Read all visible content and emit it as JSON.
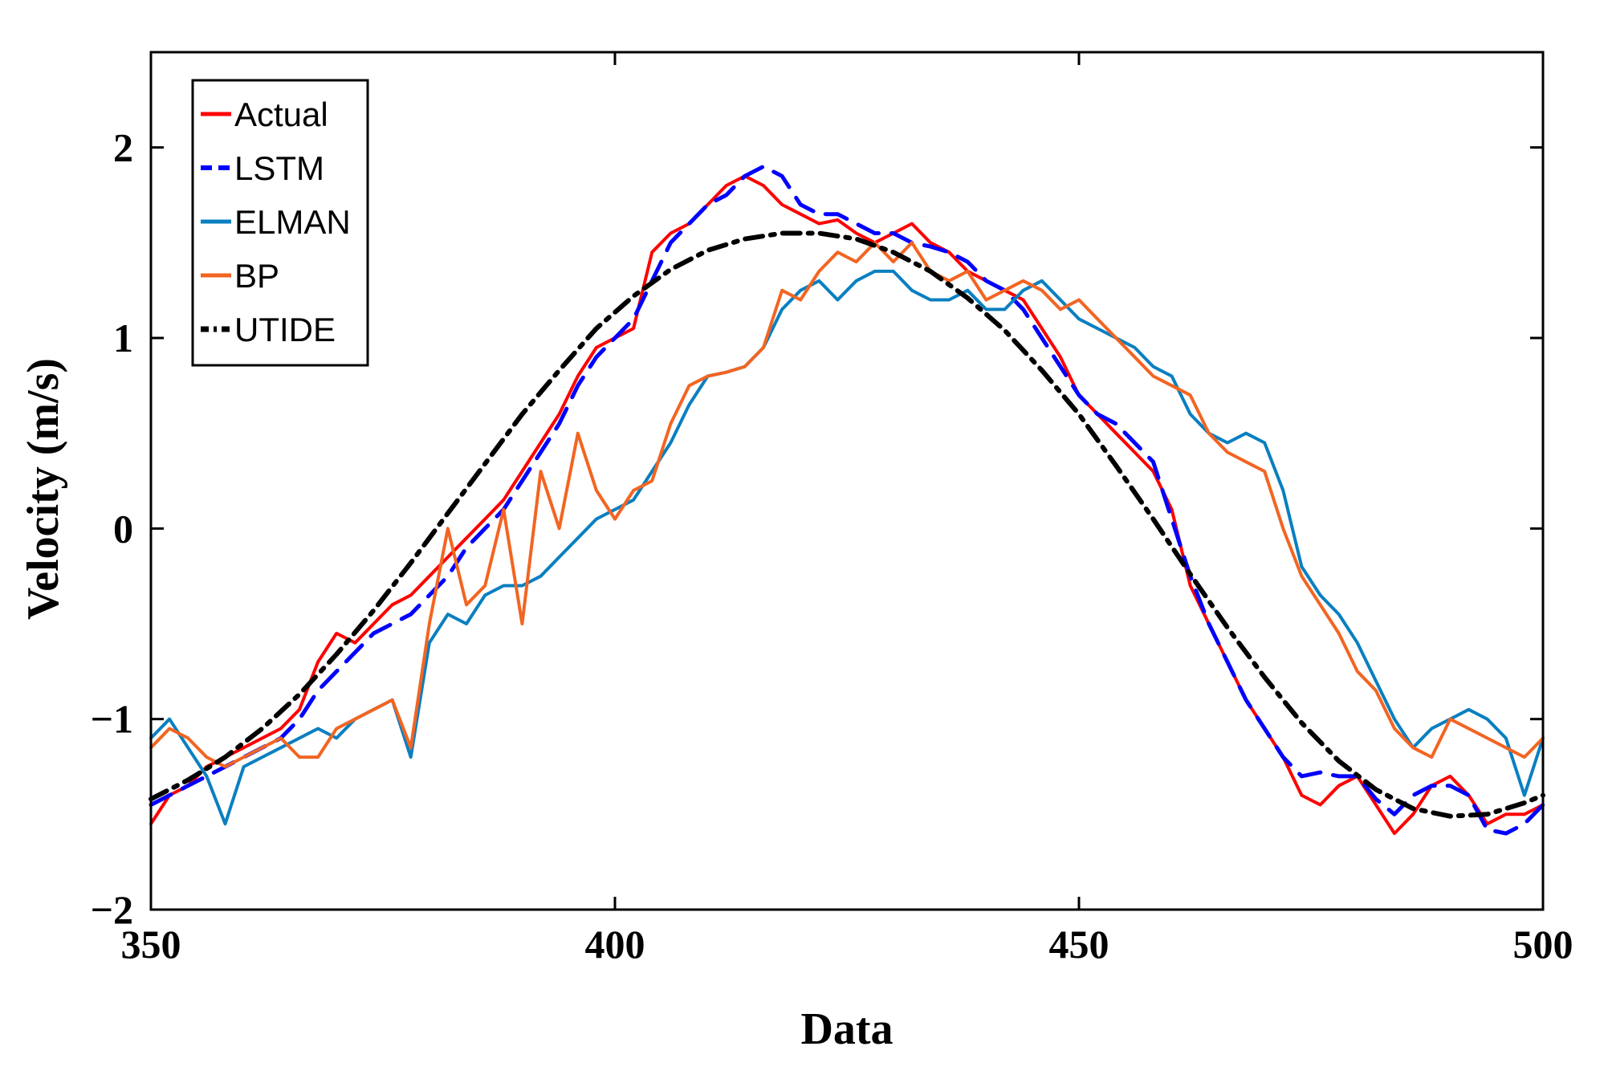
{
  "chart_data": {
    "type": "line",
    "title": "",
    "xlabel": "Data",
    "ylabel": "Velocity (m/s)",
    "xlim": [
      350,
      500
    ],
    "ylim": [
      -2,
      2.5
    ],
    "xticks": [
      350,
      400,
      450,
      500
    ],
    "yticks": [
      -2,
      -1,
      0,
      1,
      2
    ],
    "xtick_labels": [
      "350",
      "400",
      "450",
      "500"
    ],
    "ytick_labels": [
      "−2",
      "−1",
      "0",
      "1",
      "2"
    ],
    "legend_position": "top-left",
    "grid": false,
    "series": [
      {
        "name": "Actual",
        "color": "#ff0000",
        "style": "solid",
        "x": [
          350,
          352,
          354,
          356,
          358,
          360,
          362,
          364,
          366,
          368,
          370,
          372,
          374,
          376,
          378,
          380,
          382,
          384,
          386,
          388,
          390,
          392,
          394,
          396,
          398,
          400,
          402,
          404,
          406,
          408,
          410,
          412,
          414,
          416,
          418,
          420,
          422,
          424,
          426,
          428,
          430,
          432,
          434,
          436,
          438,
          440,
          442,
          444,
          446,
          448,
          450,
          452,
          454,
          456,
          458,
          460,
          462,
          464,
          466,
          468,
          470,
          472,
          474,
          476,
          478,
          480,
          482,
          484,
          486,
          488,
          490,
          492,
          494,
          496,
          498,
          500
        ],
        "y": [
          -1.55,
          -1.4,
          -1.35,
          -1.25,
          -1.2,
          -1.15,
          -1.1,
          -1.05,
          -0.95,
          -0.7,
          -0.55,
          -0.6,
          -0.5,
          -0.4,
          -0.35,
          -0.25,
          -0.15,
          -0.05,
          0.05,
          0.15,
          0.3,
          0.45,
          0.6,
          0.8,
          0.95,
          1.0,
          1.05,
          1.45,
          1.55,
          1.6,
          1.7,
          1.8,
          1.85,
          1.8,
          1.7,
          1.65,
          1.6,
          1.62,
          1.55,
          1.5,
          1.55,
          1.6,
          1.5,
          1.45,
          1.35,
          1.3,
          1.25,
          1.2,
          1.05,
          0.9,
          0.7,
          0.6,
          0.5,
          0.4,
          0.3,
          0.1,
          -0.3,
          -0.5,
          -0.7,
          -0.9,
          -1.05,
          -1.2,
          -1.4,
          -1.45,
          -1.35,
          -1.3,
          -1.45,
          -1.6,
          -1.5,
          -1.35,
          -1.3,
          -1.4,
          -1.55,
          -1.5,
          -1.5,
          -1.45
        ]
      },
      {
        "name": "LSTM",
        "color": "#0000ff",
        "style": "dashed",
        "x": [
          350,
          352,
          354,
          356,
          358,
          360,
          362,
          364,
          366,
          368,
          370,
          372,
          374,
          376,
          378,
          380,
          382,
          384,
          386,
          388,
          390,
          392,
          394,
          396,
          398,
          400,
          402,
          404,
          406,
          408,
          410,
          412,
          414,
          416,
          418,
          420,
          422,
          424,
          426,
          428,
          430,
          432,
          434,
          436,
          438,
          440,
          442,
          444,
          446,
          448,
          450,
          452,
          454,
          456,
          458,
          460,
          462,
          464,
          466,
          468,
          470,
          472,
          474,
          476,
          478,
          480,
          482,
          484,
          486,
          488,
          490,
          492,
          494,
          496,
          498,
          500
        ],
        "y": [
          -1.45,
          -1.4,
          -1.35,
          -1.3,
          -1.25,
          -1.2,
          -1.15,
          -1.1,
          -1.0,
          -0.85,
          -0.75,
          -0.65,
          -0.55,
          -0.5,
          -0.45,
          -0.35,
          -0.25,
          -0.1,
          0.0,
          0.1,
          0.25,
          0.4,
          0.55,
          0.75,
          0.9,
          1.0,
          1.1,
          1.3,
          1.5,
          1.6,
          1.7,
          1.75,
          1.85,
          1.9,
          1.85,
          1.7,
          1.65,
          1.65,
          1.6,
          1.55,
          1.55,
          1.5,
          1.48,
          1.45,
          1.4,
          1.3,
          1.25,
          1.15,
          1.0,
          0.85,
          0.7,
          0.6,
          0.55,
          0.45,
          0.35,
          0.05,
          -0.25,
          -0.5,
          -0.7,
          -0.9,
          -1.05,
          -1.2,
          -1.3,
          -1.28,
          -1.3,
          -1.3,
          -1.42,
          -1.5,
          -1.4,
          -1.35,
          -1.35,
          -1.4,
          -1.58,
          -1.6,
          -1.55,
          -1.45
        ]
      },
      {
        "name": "ELMAN",
        "color": "#0a7fc0",
        "style": "solid",
        "x": [
          350,
          352,
          354,
          356,
          358,
          360,
          362,
          364,
          366,
          368,
          370,
          372,
          374,
          376,
          378,
          380,
          382,
          384,
          386,
          388,
          390,
          392,
          394,
          396,
          398,
          400,
          402,
          404,
          406,
          408,
          410,
          412,
          414,
          416,
          418,
          420,
          422,
          424,
          426,
          428,
          430,
          432,
          434,
          436,
          438,
          440,
          442,
          444,
          446,
          448,
          450,
          452,
          454,
          456,
          458,
          460,
          462,
          464,
          466,
          468,
          470,
          472,
          474,
          476,
          478,
          480,
          482,
          484,
          486,
          488,
          490,
          492,
          494,
          496,
          498,
          500
        ],
        "y": [
          -1.1,
          -1.0,
          -1.15,
          -1.3,
          -1.55,
          -1.25,
          -1.2,
          -1.15,
          -1.1,
          -1.05,
          -1.1,
          -1.0,
          -0.95,
          -0.9,
          -1.2,
          -0.6,
          -0.45,
          -0.5,
          -0.35,
          -0.3,
          -0.3,
          -0.25,
          -0.15,
          -0.05,
          0.05,
          0.1,
          0.15,
          0.3,
          0.45,
          0.65,
          0.8,
          0.82,
          0.85,
          0.95,
          1.15,
          1.25,
          1.3,
          1.2,
          1.3,
          1.35,
          1.35,
          1.25,
          1.2,
          1.2,
          1.25,
          1.15,
          1.15,
          1.25,
          1.3,
          1.2,
          1.1,
          1.05,
          1.0,
          0.95,
          0.85,
          0.8,
          0.6,
          0.5,
          0.45,
          0.5,
          0.45,
          0.2,
          -0.2,
          -0.35,
          -0.45,
          -0.6,
          -0.8,
          -1.0,
          -1.15,
          -1.05,
          -1.0,
          -0.95,
          -1.0,
          -1.1,
          -1.4,
          -1.1
        ]
      },
      {
        "name": "BP",
        "color": "#f26522",
        "style": "solid",
        "x": [
          350,
          352,
          354,
          356,
          358,
          360,
          362,
          364,
          366,
          368,
          370,
          372,
          374,
          376,
          378,
          380,
          382,
          384,
          386,
          388,
          390,
          392,
          394,
          396,
          398,
          400,
          402,
          404,
          406,
          408,
          410,
          412,
          414,
          416,
          418,
          420,
          422,
          424,
          426,
          428,
          430,
          432,
          434,
          436,
          438,
          440,
          442,
          444,
          446,
          448,
          450,
          452,
          454,
          456,
          458,
          460,
          462,
          464,
          466,
          468,
          470,
          472,
          474,
          476,
          478,
          480,
          482,
          484,
          486,
          488,
          490,
          492,
          494,
          496,
          498,
          500
        ],
        "y": [
          -1.15,
          -1.05,
          -1.1,
          -1.2,
          -1.25,
          -1.2,
          -1.15,
          -1.1,
          -1.2,
          -1.2,
          -1.05,
          -1.0,
          -0.95,
          -0.9,
          -1.15,
          -0.5,
          0.0,
          -0.4,
          -0.3,
          0.1,
          -0.5,
          0.3,
          0.0,
          0.5,
          0.2,
          0.05,
          0.2,
          0.25,
          0.55,
          0.75,
          0.8,
          0.82,
          0.85,
          0.95,
          1.25,
          1.2,
          1.35,
          1.45,
          1.4,
          1.5,
          1.4,
          1.5,
          1.35,
          1.3,
          1.35,
          1.2,
          1.25,
          1.3,
          1.25,
          1.15,
          1.2,
          1.1,
          1.0,
          0.9,
          0.8,
          0.75,
          0.7,
          0.5,
          0.4,
          0.35,
          0.3,
          0.0,
          -0.25,
          -0.4,
          -0.55,
          -0.75,
          -0.85,
          -1.05,
          -1.15,
          -1.2,
          -1.0,
          -1.05,
          -1.1,
          -1.15,
          -1.2,
          -1.1
        ]
      },
      {
        "name": "UTIDE",
        "color": "#000000",
        "style": "dashdot",
        "x": [
          350,
          354,
          358,
          362,
          366,
          370,
          374,
          378,
          382,
          386,
          390,
          394,
          398,
          402,
          406,
          410,
          414,
          418,
          422,
          426,
          430,
          434,
          438,
          442,
          446,
          450,
          454,
          458,
          462,
          466,
          470,
          474,
          478,
          482,
          486,
          490,
          494,
          498,
          500
        ],
        "y": [
          -1.42,
          -1.32,
          -1.2,
          -1.05,
          -0.87,
          -0.66,
          -0.43,
          -0.18,
          0.08,
          0.34,
          0.6,
          0.83,
          1.05,
          1.22,
          1.36,
          1.46,
          1.52,
          1.55,
          1.55,
          1.52,
          1.45,
          1.35,
          1.21,
          1.04,
          0.83,
          0.6,
          0.33,
          0.05,
          -0.24,
          -0.52,
          -0.78,
          -1.02,
          -1.22,
          -1.37,
          -1.47,
          -1.51,
          -1.5,
          -1.44,
          -1.4
        ]
      }
    ]
  }
}
